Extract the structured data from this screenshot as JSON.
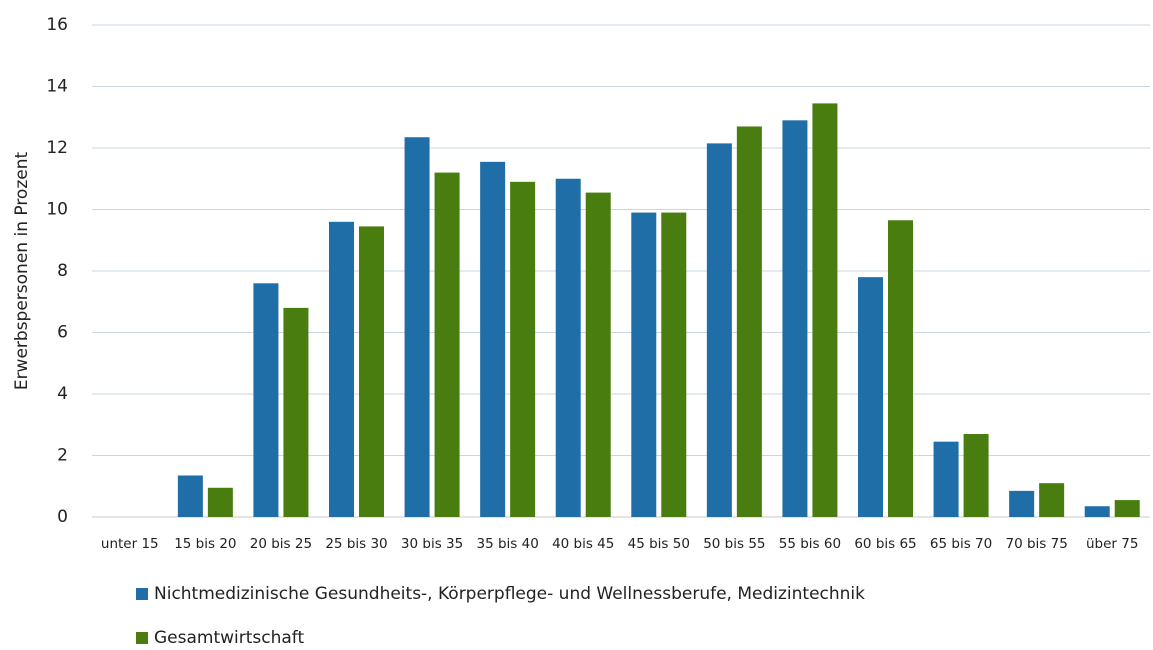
{
  "chart_data": {
    "type": "bar",
    "ylabel": "Erwerbspersonen in Prozent",
    "categories": [
      "unter 15",
      "15 bis 20",
      "20 bis 25",
      "25 bis 30",
      "30 bis 35",
      "35 bis 40",
      "40 bis 45",
      "45 bis 50",
      "50 bis 55",
      "55 bis 60",
      "60 bis 65",
      "65 bis 70",
      "70 bis 75",
      "über 75"
    ],
    "series": [
      {
        "name": "Nichtmedizinische Gesundheits-, Körperpflege- und Wellnessberufe, Medizintechnik",
        "color": "#1f6ea8",
        "values": [
          0,
          1.35,
          7.6,
          9.6,
          12.35,
          11.55,
          11.0,
          9.9,
          12.15,
          12.9,
          7.8,
          2.45,
          0.85,
          0.35
        ]
      },
      {
        "name": "Gesamtwirtschaft",
        "color": "#4a7d0f",
        "values": [
          0,
          0.95,
          6.8,
          9.45,
          11.2,
          10.9,
          10.55,
          9.9,
          12.7,
          13.45,
          9.65,
          2.7,
          1.1,
          0.55
        ]
      }
    ],
    "ylim": [
      0,
      16
    ],
    "yticks": [
      0,
      2,
      4,
      6,
      8,
      10,
      12,
      14,
      16
    ],
    "grid": true,
    "legend": "bottom"
  }
}
